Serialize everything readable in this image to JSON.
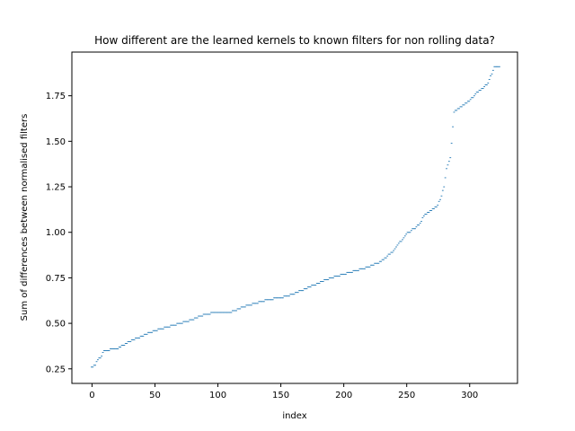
{
  "chart_data": {
    "type": "scatter",
    "title": "How different are the learned kernels to known filters for non rolling data?",
    "xlabel": "index",
    "ylabel": "Sum of differences between normalised filters",
    "xlim": [
      -16,
      338
    ],
    "ylim": [
      0.17,
      1.99
    ],
    "xticks": [
      0,
      50,
      100,
      150,
      200,
      250,
      300
    ],
    "xtick_labels": [
      "0",
      "50",
      "100",
      "150",
      "200",
      "250",
      "300"
    ],
    "yticks": [
      0.25,
      0.5,
      0.75,
      1.0,
      1.25,
      1.5,
      1.75
    ],
    "ytick_labels": [
      "0.25",
      "0.50",
      "0.75",
      "1.00",
      "1.25",
      "1.50",
      "1.75"
    ],
    "grid": false,
    "legend": "none",
    "marker_color": "#1f77b4",
    "curve_points": [
      [
        0,
        0.26
      ],
      [
        3,
        0.27
      ],
      [
        5,
        0.3
      ],
      [
        7,
        0.31
      ],
      [
        10,
        0.35
      ],
      [
        20,
        0.36
      ],
      [
        25,
        0.38
      ],
      [
        30,
        0.4
      ],
      [
        40,
        0.43
      ],
      [
        50,
        0.46
      ],
      [
        60,
        0.48
      ],
      [
        70,
        0.5
      ],
      [
        80,
        0.52
      ],
      [
        90,
        0.55
      ],
      [
        100,
        0.56
      ],
      [
        110,
        0.56
      ],
      [
        120,
        0.59
      ],
      [
        130,
        0.61
      ],
      [
        140,
        0.63
      ],
      [
        150,
        0.64
      ],
      [
        160,
        0.66
      ],
      [
        170,
        0.69
      ],
      [
        180,
        0.72
      ],
      [
        190,
        0.75
      ],
      [
        200,
        0.77
      ],
      [
        210,
        0.79
      ],
      [
        220,
        0.81
      ],
      [
        230,
        0.84
      ],
      [
        240,
        0.9
      ],
      [
        250,
        0.99
      ],
      [
        260,
        1.04
      ],
      [
        265,
        1.1
      ],
      [
        270,
        1.12
      ],
      [
        275,
        1.15
      ],
      [
        278,
        1.2
      ],
      [
        280,
        1.25
      ],
      [
        282,
        1.35
      ],
      [
        285,
        1.41
      ],
      [
        288,
        1.66
      ],
      [
        295,
        1.7
      ],
      [
        300,
        1.72
      ],
      [
        305,
        1.76
      ],
      [
        312,
        1.8
      ],
      [
        315,
        1.82
      ],
      [
        320,
        1.91
      ],
      [
        324,
        1.91
      ]
    ],
    "n_points": 325
  }
}
